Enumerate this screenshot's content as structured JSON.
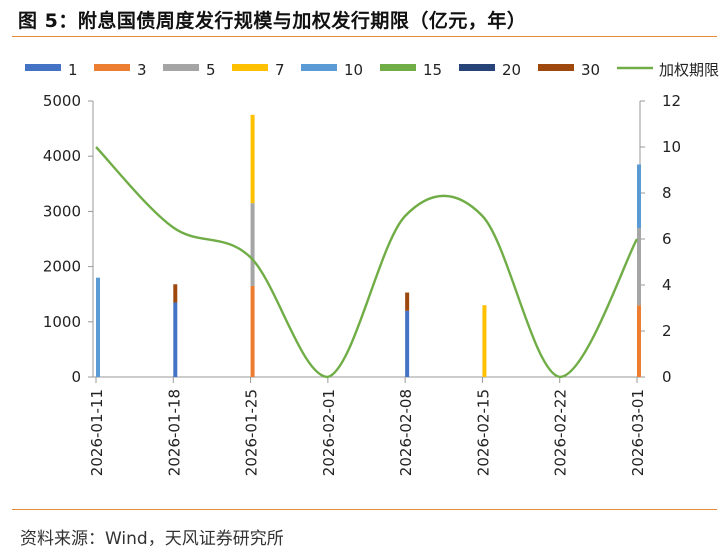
{
  "title": "图 5：附息国债周度发行规模与加权发行期限（亿元，年）",
  "source": "资料来源：Wind，天风证券研究所",
  "colors": {
    "rule": "#e48a3c",
    "axis": "#999999"
  },
  "chart_data": {
    "type": "bar",
    "stacked": true,
    "categories": [
      "2026-01-11",
      "2026-01-18",
      "2026-01-25",
      "2026-02-01",
      "2026-02-08",
      "2026-02-15",
      "2026-02-22",
      "2026-03-01"
    ],
    "y_left_range": [
      0,
      5000
    ],
    "y_left_ticks": [
      "0",
      "1000",
      "2000",
      "3000",
      "4000",
      "5000"
    ],
    "y_right_range": [
      0,
      12
    ],
    "y_right_ticks": [
      "0",
      "2",
      "4",
      "6",
      "8",
      "10",
      "12"
    ],
    "legend_position": "top",
    "series": [
      {
        "name": "1",
        "color": "#4472c4",
        "values": [
          0,
          1350,
          0,
          0,
          1200,
          0,
          0,
          0
        ]
      },
      {
        "name": "3",
        "color": "#ed7d31",
        "values": [
          0,
          0,
          1650,
          0,
          0,
          0,
          0,
          1300
        ]
      },
      {
        "name": "5",
        "color": "#a5a5a5",
        "values": [
          0,
          0,
          1500,
          0,
          0,
          0,
          0,
          1400
        ]
      },
      {
        "name": "7",
        "color": "#ffc000",
        "values": [
          0,
          0,
          1600,
          0,
          0,
          1300,
          0,
          0
        ]
      },
      {
        "name": "10",
        "color": "#5b9bd5",
        "values": [
          1800,
          0,
          0,
          0,
          0,
          0,
          0,
          1150
        ]
      },
      {
        "name": "15",
        "color": "#70ad47",
        "values": [
          0,
          0,
          0,
          0,
          0,
          0,
          0,
          0
        ]
      },
      {
        "name": "20",
        "color": "#264478",
        "values": [
          0,
          0,
          0,
          0,
          0,
          0,
          0,
          0
        ]
      },
      {
        "name": "30",
        "color": "#9e480e",
        "values": [
          0,
          330,
          0,
          0,
          330,
          0,
          0,
          0
        ]
      }
    ],
    "line": {
      "name": "加权期限（右）",
      "color": "#70ad47",
      "values": [
        10,
        6.5,
        5.2,
        0,
        7,
        7,
        0,
        6
      ]
    }
  }
}
